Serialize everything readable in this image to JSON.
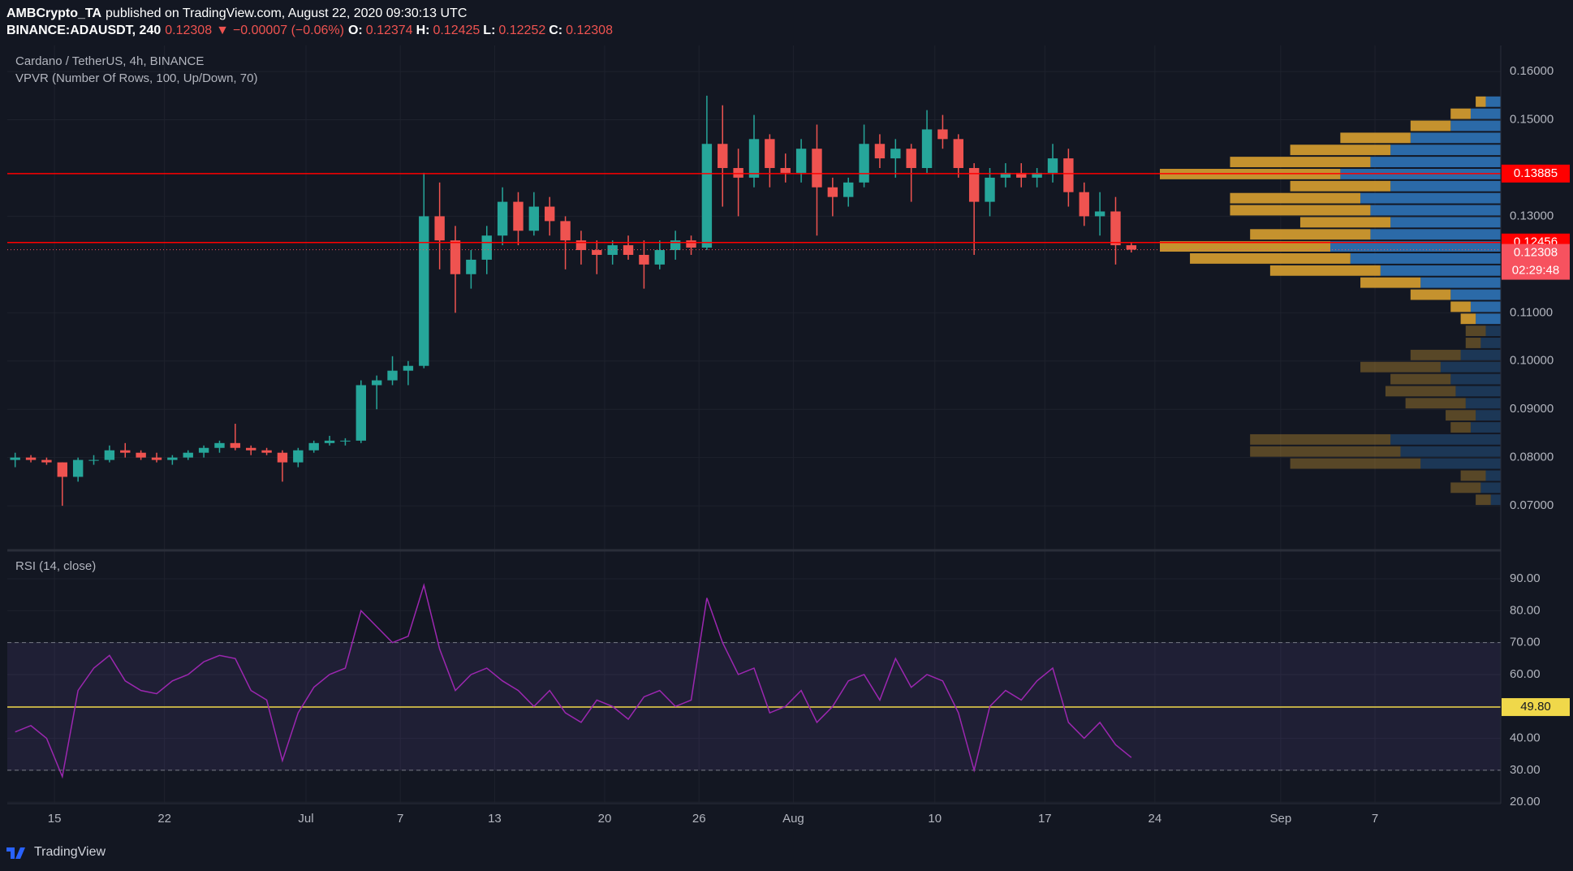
{
  "header": {
    "author": "AMBCrypto_TA",
    "published": "published on TradingView.com, August 22, 2020 09:30:13 UTC",
    "symbol": "BINANCE:ADAUSDT, 240",
    "price": "0.12308",
    "arrow": "▼",
    "change": "−0.00007 (−0.06%)",
    "ohlc": [
      {
        "label": "O:",
        "value": "0.12374"
      },
      {
        "label": "H:",
        "value": "0.12425"
      },
      {
        "label": "L:",
        "value": "0.12252"
      },
      {
        "label": "C:",
        "value": "0.12308"
      }
    ]
  },
  "footer": {
    "brand": "TradingView"
  },
  "chart_data": [
    {
      "type": "candlestick",
      "title": "Cardano / TetherUS, 4h, BINANCE",
      "indicator": "VPVR (Number Of Rows, 100, Up/Down, 70)",
      "x": [
        "2020-06-12",
        "2020-06-13",
        "2020-06-14",
        "2020-06-15",
        "2020-06-16",
        "2020-06-17",
        "2020-06-18",
        "2020-06-19",
        "2020-06-20",
        "2020-06-21",
        "2020-06-22",
        "2020-06-23",
        "2020-06-24",
        "2020-06-25",
        "2020-06-26",
        "2020-06-27",
        "2020-06-28",
        "2020-06-29",
        "2020-06-30",
        "2020-07-01",
        "2020-07-02",
        "2020-07-03",
        "2020-07-04",
        "2020-07-05",
        "2020-07-06",
        "2020-07-07",
        "2020-07-08",
        "2020-07-09",
        "2020-07-10",
        "2020-07-11",
        "2020-07-12",
        "2020-07-13",
        "2020-07-14",
        "2020-07-15",
        "2020-07-16",
        "2020-07-17",
        "2020-07-18",
        "2020-07-19",
        "2020-07-20",
        "2020-07-21",
        "2020-07-22",
        "2020-07-23",
        "2020-07-24",
        "2020-07-25",
        "2020-07-26",
        "2020-07-27",
        "2020-07-28",
        "2020-07-29",
        "2020-07-30",
        "2020-07-31",
        "2020-08-01",
        "2020-08-02",
        "2020-08-03",
        "2020-08-04",
        "2020-08-05",
        "2020-08-06",
        "2020-08-07",
        "2020-08-08",
        "2020-08-09",
        "2020-08-10",
        "2020-08-11",
        "2020-08-12",
        "2020-08-13",
        "2020-08-14",
        "2020-08-15",
        "2020-08-16",
        "2020-08-17",
        "2020-08-18",
        "2020-08-19",
        "2020-08-20",
        "2020-08-21",
        "2020-08-22"
      ],
      "open": [
        0.0795,
        0.08,
        0.0795,
        0.079,
        0.076,
        0.0795,
        0.0795,
        0.0815,
        0.081,
        0.08,
        0.0795,
        0.08,
        0.081,
        0.082,
        0.083,
        0.082,
        0.0815,
        0.081,
        0.079,
        0.0815,
        0.083,
        0.0835,
        0.0835,
        0.095,
        0.096,
        0.098,
        0.099,
        0.13,
        0.125,
        0.118,
        0.121,
        0.126,
        0.133,
        0.127,
        0.132,
        0.129,
        0.125,
        0.123,
        0.122,
        0.124,
        0.122,
        0.12,
        0.123,
        0.125,
        0.1235,
        0.145,
        0.14,
        0.138,
        0.146,
        0.14,
        0.139,
        0.144,
        0.136,
        0.134,
        0.137,
        0.145,
        0.142,
        0.144,
        0.14,
        0.148,
        0.146,
        0.14,
        0.133,
        0.138,
        0.139,
        0.138,
        0.139,
        0.142,
        0.135,
        0.13,
        0.131,
        0.124
      ],
      "high": [
        0.081,
        0.0805,
        0.08,
        0.079,
        0.08,
        0.0805,
        0.0825,
        0.083,
        0.0815,
        0.081,
        0.0805,
        0.0815,
        0.0825,
        0.0835,
        0.087,
        0.0825,
        0.082,
        0.0815,
        0.082,
        0.0835,
        0.0845,
        0.084,
        0.096,
        0.097,
        0.101,
        0.1,
        0.139,
        0.137,
        0.128,
        0.123,
        0.128,
        0.136,
        0.135,
        0.135,
        0.134,
        0.13,
        0.127,
        0.125,
        0.125,
        0.126,
        0.125,
        0.125,
        0.127,
        0.126,
        0.155,
        0.153,
        0.144,
        0.151,
        0.147,
        0.143,
        0.146,
        0.149,
        0.138,
        0.138,
        0.149,
        0.147,
        0.146,
        0.145,
        0.152,
        0.151,
        0.147,
        0.141,
        0.14,
        0.141,
        0.141,
        0.14,
        0.145,
        0.144,
        0.137,
        0.135,
        0.134,
        0.1245
      ],
      "low": [
        0.078,
        0.079,
        0.0785,
        0.07,
        0.075,
        0.0785,
        0.079,
        0.08,
        0.0795,
        0.079,
        0.0785,
        0.0795,
        0.08,
        0.081,
        0.0815,
        0.0805,
        0.0805,
        0.075,
        0.078,
        0.081,
        0.0825,
        0.0825,
        0.083,
        0.09,
        0.095,
        0.095,
        0.0985,
        0.119,
        0.11,
        0.115,
        0.118,
        0.124,
        0.124,
        0.126,
        0.126,
        0.119,
        0.12,
        0.118,
        0.12,
        0.121,
        0.115,
        0.119,
        0.121,
        0.122,
        0.123,
        0.132,
        0.13,
        0.136,
        0.136,
        0.137,
        0.137,
        0.126,
        0.13,
        0.132,
        0.136,
        0.14,
        0.138,
        0.133,
        0.139,
        0.144,
        0.138,
        0.122,
        0.13,
        0.136,
        0.136,
        0.136,
        0.137,
        0.132,
        0.128,
        0.126,
        0.12,
        0.1225
      ],
      "close": [
        0.08,
        0.0795,
        0.079,
        0.076,
        0.0795,
        0.0795,
        0.0815,
        0.081,
        0.08,
        0.0795,
        0.08,
        0.081,
        0.082,
        0.083,
        0.082,
        0.0815,
        0.081,
        0.079,
        0.0815,
        0.083,
        0.0835,
        0.0835,
        0.095,
        0.096,
        0.098,
        0.099,
        0.13,
        0.125,
        0.118,
        0.121,
        0.126,
        0.133,
        0.127,
        0.132,
        0.129,
        0.125,
        0.123,
        0.122,
        0.124,
        0.122,
        0.12,
        0.123,
        0.125,
        0.1235,
        0.145,
        0.14,
        0.138,
        0.146,
        0.14,
        0.139,
        0.144,
        0.136,
        0.134,
        0.137,
        0.145,
        0.142,
        0.144,
        0.14,
        0.148,
        0.146,
        0.14,
        0.133,
        0.138,
        0.139,
        0.138,
        0.139,
        0.142,
        0.135,
        0.13,
        0.131,
        0.124,
        0.12308
      ],
      "colors": {
        "up": "#26a69a",
        "down": "#ef5350"
      },
      "xlim": [
        "2020-06-12",
        "2020-09-15"
      ],
      "ylim": [
        0.0611,
        0.1654
      ],
      "yticks": [
        {
          "value": 0.16,
          "label": "0.16000"
        },
        {
          "value": 0.15,
          "label": "0.15000"
        },
        {
          "value": 0.13,
          "label": "0.13000"
        },
        {
          "value": 0.11,
          "label": "0.11000"
        },
        {
          "value": 0.1,
          "label": "0.10000"
        },
        {
          "value": 0.09,
          "label": "0.09000"
        },
        {
          "value": 0.08,
          "label": "0.08000"
        },
        {
          "value": 0.07,
          "label": "0.07000"
        }
      ],
      "hlines": [
        {
          "value": 0.13885,
          "color": "#ff0000"
        },
        {
          "value": 0.12456,
          "color": "#ff0000"
        }
      ],
      "last_price": {
        "value": 0.12308,
        "color": "#f7525f"
      },
      "countdown": "02:29:48",
      "vpvr": {
        "price": [
          0.07,
          0.0725,
          0.075,
          0.0775,
          0.08,
          0.0825,
          0.085,
          0.0875,
          0.09,
          0.0925,
          0.095,
          0.0975,
          0.1,
          0.1025,
          0.105,
          0.1075,
          0.11,
          0.1125,
          0.115,
          0.1175,
          0.12,
          0.1225,
          0.125,
          0.1275,
          0.13,
          0.1325,
          0.135,
          0.1375,
          0.14,
          0.1425,
          0.145,
          0.1475,
          0.15,
          0.1525
        ],
        "up": [
          10,
          20,
          15,
          80,
          100,
          110,
          30,
          25,
          35,
          45,
          50,
          60,
          40,
          20,
          15,
          25,
          30,
          50,
          80,
          120,
          150,
          170,
          130,
          110,
          130,
          140,
          110,
          160,
          130,
          110,
          90,
          50,
          30,
          15
        ],
        "down": [
          15,
          30,
          25,
          130,
          150,
          140,
          20,
          30,
          60,
          70,
          60,
          80,
          50,
          15,
          20,
          15,
          20,
          40,
          60,
          110,
          160,
          170,
          120,
          90,
          140,
          130,
          100,
          180,
          140,
          100,
          70,
          40,
          20,
          10
        ],
        "up_color": "#2f73b7",
        "down_color": "#d9a030",
        "value_area": [
          0.1075,
          0.155
        ]
      }
    },
    {
      "type": "line",
      "title": "RSI (14, close)",
      "x": [
        "2020-06-12",
        "2020-06-13",
        "2020-06-14",
        "2020-06-15",
        "2020-06-16",
        "2020-06-17",
        "2020-06-18",
        "2020-06-19",
        "2020-06-20",
        "2020-06-21",
        "2020-06-22",
        "2020-06-23",
        "2020-06-24",
        "2020-06-25",
        "2020-06-26",
        "2020-06-27",
        "2020-06-28",
        "2020-06-29",
        "2020-06-30",
        "2020-07-01",
        "2020-07-02",
        "2020-07-03",
        "2020-07-04",
        "2020-07-05",
        "2020-07-06",
        "2020-07-07",
        "2020-07-08",
        "2020-07-09",
        "2020-07-10",
        "2020-07-11",
        "2020-07-12",
        "2020-07-13",
        "2020-07-14",
        "2020-07-15",
        "2020-07-16",
        "2020-07-17",
        "2020-07-18",
        "2020-07-19",
        "2020-07-20",
        "2020-07-21",
        "2020-07-22",
        "2020-07-23",
        "2020-07-24",
        "2020-07-25",
        "2020-07-26",
        "2020-07-27",
        "2020-07-28",
        "2020-07-29",
        "2020-07-30",
        "2020-07-31",
        "2020-08-01",
        "2020-08-02",
        "2020-08-03",
        "2020-08-04",
        "2020-08-05",
        "2020-08-06",
        "2020-08-07",
        "2020-08-08",
        "2020-08-09",
        "2020-08-10",
        "2020-08-11",
        "2020-08-12",
        "2020-08-13",
        "2020-08-14",
        "2020-08-15",
        "2020-08-16",
        "2020-08-17",
        "2020-08-18",
        "2020-08-19",
        "2020-08-20",
        "2020-08-21",
        "2020-08-22"
      ],
      "series": [
        {
          "color": "#9c27b0",
          "values": [
            42,
            44,
            40,
            28,
            55,
            62,
            66,
            58,
            55,
            54,
            58,
            60,
            64,
            66,
            65,
            55,
            52,
            33,
            48,
            56,
            60,
            62,
            80,
            75,
            70,
            72,
            88,
            68,
            55,
            60,
            62,
            58,
            55,
            50,
            55,
            48,
            45,
            52,
            50,
            46,
            53,
            55,
            50,
            52,
            84,
            70,
            60,
            62,
            48,
            50,
            55,
            45,
            50,
            58,
            60,
            52,
            65,
            56,
            60,
            58,
            48,
            30,
            50,
            55,
            52,
            58,
            62,
            45,
            40,
            45,
            38,
            34
          ]
        }
      ],
      "xlim": [
        "2020-06-12",
        "2020-09-15"
      ],
      "ylim": [
        19.8,
        98.4
      ],
      "yticks": [
        {
          "value": 90,
          "label": "90.00"
        },
        {
          "value": 80,
          "label": "80.00"
        },
        {
          "value": 70,
          "label": "70.00"
        },
        {
          "value": 60,
          "label": "60.00"
        },
        {
          "value": 50,
          "label": "50.00"
        },
        {
          "value": 40,
          "label": "40.00"
        },
        {
          "value": 30,
          "label": "30.00"
        },
        {
          "value": 20,
          "label": "20.00"
        }
      ],
      "bands": [
        70,
        30
      ],
      "level": {
        "value": 49.8,
        "label": "49.80",
        "color": "#f0d84a"
      },
      "xticks": [
        {
          "value": "2020-06-15",
          "label": "15"
        },
        {
          "value": "2020-06-22",
          "label": "22"
        },
        {
          "value": "2020-07-01",
          "label": "Jul"
        },
        {
          "value": "2020-07-07",
          "label": "7"
        },
        {
          "value": "2020-07-13",
          "label": "13"
        },
        {
          "value": "2020-07-20",
          "label": "20"
        },
        {
          "value": "2020-07-26",
          "label": "26"
        },
        {
          "value": "2020-08-01",
          "label": "Aug"
        },
        {
          "value": "2020-08-10",
          "label": "10"
        },
        {
          "value": "2020-08-17",
          "label": "17"
        },
        {
          "value": "2020-08-24",
          "label": "24"
        },
        {
          "value": "2020-09-01",
          "label": "Sep"
        },
        {
          "value": "2020-09-07",
          "label": "7"
        }
      ]
    }
  ]
}
